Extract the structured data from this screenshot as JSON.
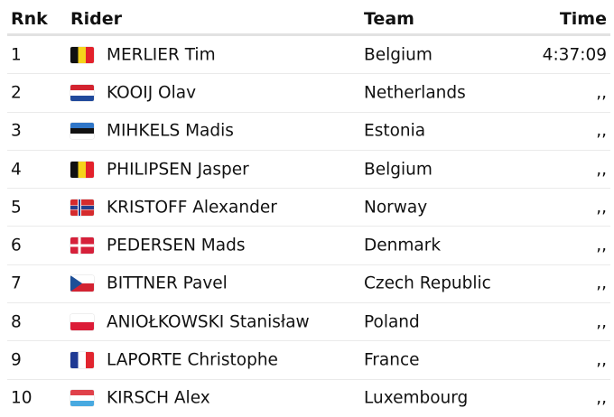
{
  "headers": {
    "rank": "Rnk",
    "rider": "Rider",
    "team": "Team",
    "time": "Time"
  },
  "rows": [
    {
      "rank": "1",
      "flag": "be",
      "rider": "MERLIER Tim",
      "team": "Belgium",
      "time": "4:37:09"
    },
    {
      "rank": "2",
      "flag": "nl",
      "rider": "KOOIJ Olav",
      "team": "Netherlands",
      "time": ",,"
    },
    {
      "rank": "3",
      "flag": "ee",
      "rider": "MIHKELS Madis",
      "team": "Estonia",
      "time": ",,"
    },
    {
      "rank": "4",
      "flag": "be",
      "rider": "PHILIPSEN Jasper",
      "team": "Belgium",
      "time": ",,"
    },
    {
      "rank": "5",
      "flag": "no",
      "rider": "KRISTOFF Alexander",
      "team": "Norway",
      "time": ",,"
    },
    {
      "rank": "6",
      "flag": "dk",
      "rider": "PEDERSEN Mads",
      "team": "Denmark",
      "time": ",,"
    },
    {
      "rank": "7",
      "flag": "cz",
      "rider": "BITTNER Pavel",
      "team": "Czech Republic",
      "time": ",,"
    },
    {
      "rank": "8",
      "flag": "pl",
      "rider": "ANIOŁKOWSKI Stanisław",
      "team": "Poland",
      "time": ",,"
    },
    {
      "rank": "9",
      "flag": "fr",
      "rider": "LAPORTE Christophe",
      "team": "France",
      "time": ",,"
    },
    {
      "rank": "10",
      "flag": "lu",
      "rider": "KIRSCH Alex",
      "team": "Luxembourg",
      "time": ",,"
    }
  ]
}
